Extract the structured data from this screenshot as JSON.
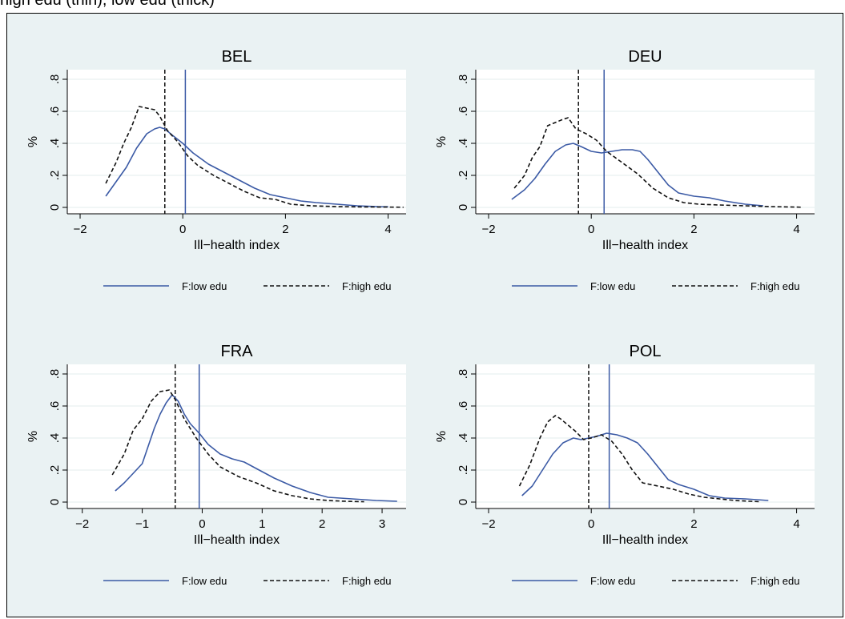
{
  "caption": "high edu (thin), low edu (thick)",
  "colors": {
    "low_edu": "#3b5aa5",
    "high_edu": "#111111",
    "panel_bg": "#eaf2f3",
    "plot_bg": "#ffffff",
    "grid": "#e3eced"
  },
  "chart_data": [
    {
      "type": "line",
      "title": "BEL",
      "xlabel": "Ill−health index",
      "ylabel": "%",
      "xlim": [
        -2.25,
        4.35
      ],
      "ylim": [
        -0.04,
        0.86
      ],
      "xticks": [
        -2,
        0,
        2,
        4
      ],
      "xtick_labels": [
        "−2",
        "0",
        "2",
        "4"
      ],
      "yticks": [
        0,
        0.2,
        0.4,
        0.6,
        0.8
      ],
      "ytick_labels": [
        "0",
        ".2",
        ".4",
        ".6",
        ".8"
      ],
      "grid": true,
      "legend_position": "bottom",
      "vlines": [
        {
          "series": "F:low edu",
          "x": 0.05
        },
        {
          "series": "F:high edu",
          "x": -0.35
        }
      ],
      "series": [
        {
          "name": "F:low edu",
          "style": "solid",
          "x": [
            -1.5,
            -1.3,
            -1.1,
            -0.9,
            -0.7,
            -0.55,
            -0.45,
            -0.35,
            -0.2,
            0,
            0.2,
            0.5,
            0.8,
            1.1,
            1.4,
            1.7,
            2.0,
            2.3,
            2.6,
            3.0,
            3.4,
            3.8,
            4.0
          ],
          "y": [
            0.07,
            0.16,
            0.25,
            0.37,
            0.46,
            0.49,
            0.5,
            0.49,
            0.45,
            0.4,
            0.34,
            0.27,
            0.22,
            0.17,
            0.12,
            0.08,
            0.06,
            0.04,
            0.03,
            0.02,
            0.01,
            0.005,
            0.004
          ]
        },
        {
          "name": "F:high edu",
          "style": "dashed",
          "x": [
            -1.5,
            -1.3,
            -1.15,
            -1.0,
            -0.85,
            -0.7,
            -0.55,
            -0.45,
            -0.3,
            -0.1,
            0.1,
            0.3,
            0.6,
            0.9,
            1.2,
            1.5,
            1.8,
            2.1,
            2.5,
            3.0,
            3.5,
            4.0,
            4.3
          ],
          "y": [
            0.15,
            0.28,
            0.4,
            0.5,
            0.63,
            0.62,
            0.61,
            0.57,
            0.48,
            0.41,
            0.32,
            0.26,
            0.2,
            0.15,
            0.1,
            0.06,
            0.05,
            0.02,
            0.01,
            0.005,
            0.003,
            0.002,
            0.001
          ]
        }
      ]
    },
    {
      "type": "line",
      "title": "DEU",
      "xlabel": "Ill−health index",
      "ylabel": "%",
      "xlim": [
        -2.25,
        4.35
      ],
      "ylim": [
        -0.04,
        0.86
      ],
      "xticks": [
        -2,
        0,
        2,
        4
      ],
      "xtick_labels": [
        "−2",
        "0",
        "2",
        "4"
      ],
      "yticks": [
        0,
        0.2,
        0.4,
        0.6,
        0.8
      ],
      "ytick_labels": [
        "0",
        ".2",
        ".4",
        ".6",
        ".8"
      ],
      "grid": true,
      "legend_position": "bottom",
      "vlines": [
        {
          "series": "F:low edu",
          "x": 0.25
        },
        {
          "series": "F:high edu",
          "x": -0.25
        }
      ],
      "series": [
        {
          "name": "F:low edu",
          "style": "solid",
          "x": [
            -1.55,
            -1.3,
            -1.1,
            -0.9,
            -0.7,
            -0.5,
            -0.35,
            -0.2,
            0,
            0.2,
            0.4,
            0.6,
            0.8,
            0.95,
            1.1,
            1.3,
            1.5,
            1.7,
            2.0,
            2.3,
            2.6,
            3.0,
            3.35
          ],
          "y": [
            0.05,
            0.11,
            0.18,
            0.27,
            0.35,
            0.39,
            0.4,
            0.38,
            0.35,
            0.34,
            0.35,
            0.36,
            0.36,
            0.35,
            0.3,
            0.22,
            0.14,
            0.09,
            0.07,
            0.06,
            0.04,
            0.02,
            0.01
          ]
        },
        {
          "name": "F:high edu",
          "style": "dashed",
          "x": [
            -1.5,
            -1.3,
            -1.15,
            -1.0,
            -0.85,
            -0.7,
            -0.55,
            -0.45,
            -0.3,
            -0.1,
            0.1,
            0.3,
            0.6,
            0.9,
            1.2,
            1.5,
            1.8,
            2.1,
            2.5,
            3.0,
            3.5,
            4.0,
            4.1
          ],
          "y": [
            0.12,
            0.2,
            0.31,
            0.38,
            0.51,
            0.53,
            0.55,
            0.56,
            0.49,
            0.46,
            0.42,
            0.35,
            0.28,
            0.21,
            0.12,
            0.06,
            0.03,
            0.02,
            0.015,
            0.01,
            0.005,
            0.002,
            0.001
          ]
        }
      ]
    },
    {
      "type": "line",
      "title": "FRA",
      "xlabel": "Ill−health index",
      "ylabel": "%",
      "xlim": [
        -2.25,
        3.4
      ],
      "ylim": [
        -0.04,
        0.86
      ],
      "xticks": [
        -2,
        -1,
        0,
        1,
        2,
        3
      ],
      "xtick_labels": [
        "−2",
        "−1",
        "0",
        "1",
        "2",
        "3"
      ],
      "yticks": [
        0,
        0.2,
        0.4,
        0.6,
        0.8
      ],
      "ytick_labels": [
        "0",
        ".2",
        ".4",
        ".6",
        ".8"
      ],
      "grid": true,
      "legend_position": "bottom",
      "vlines": [
        {
          "series": "F:low edu",
          "x": -0.05
        },
        {
          "series": "F:high edu",
          "x": -0.45
        }
      ],
      "series": [
        {
          "name": "F:low edu",
          "style": "solid",
          "x": [
            -1.45,
            -1.3,
            -1.15,
            -1.0,
            -0.9,
            -0.8,
            -0.7,
            -0.6,
            -0.5,
            -0.4,
            -0.3,
            -0.2,
            -0.05,
            0.1,
            0.3,
            0.5,
            0.7,
            0.9,
            1.2,
            1.5,
            1.8,
            2.1,
            2.5,
            2.9,
            3.25
          ],
          "y": [
            0.07,
            0.12,
            0.18,
            0.24,
            0.35,
            0.46,
            0.55,
            0.62,
            0.67,
            0.63,
            0.55,
            0.49,
            0.43,
            0.36,
            0.3,
            0.27,
            0.25,
            0.21,
            0.15,
            0.1,
            0.06,
            0.03,
            0.02,
            0.01,
            0.005
          ]
        },
        {
          "name": "F:high edu",
          "style": "dashed",
          "x": [
            -1.5,
            -1.3,
            -1.15,
            -1.0,
            -0.85,
            -0.7,
            -0.55,
            -0.45,
            -0.3,
            -0.1,
            0.1,
            0.3,
            0.6,
            0.9,
            1.2,
            1.5,
            1.8,
            2.1,
            2.4,
            2.7
          ],
          "y": [
            0.17,
            0.3,
            0.45,
            0.52,
            0.63,
            0.69,
            0.7,
            0.64,
            0.52,
            0.4,
            0.3,
            0.22,
            0.16,
            0.12,
            0.07,
            0.04,
            0.02,
            0.01,
            0.005,
            0.002
          ]
        }
      ]
    },
    {
      "type": "line",
      "title": "POL",
      "xlabel": "Ill−health index",
      "ylabel": "%",
      "xlim": [
        -2.25,
        4.35
      ],
      "ylim": [
        -0.04,
        0.86
      ],
      "xticks": [
        -2,
        0,
        2,
        4
      ],
      "xtick_labels": [
        "−2",
        "0",
        "2",
        "4"
      ],
      "yticks": [
        0,
        0.2,
        0.4,
        0.6,
        0.8
      ],
      "ytick_labels": [
        "0",
        ".2",
        ".4",
        ".6",
        ".8"
      ],
      "grid": true,
      "legend_position": "bottom",
      "vlines": [
        {
          "series": "F:low edu",
          "x": 0.35
        },
        {
          "series": "F:high edu",
          "x": -0.05
        }
      ],
      "series": [
        {
          "name": "F:low edu",
          "style": "solid",
          "x": [
            -1.35,
            -1.15,
            -0.95,
            -0.75,
            -0.55,
            -0.35,
            -0.2,
            -0.05,
            0.1,
            0.3,
            0.5,
            0.7,
            0.9,
            1.1,
            1.3,
            1.5,
            1.7,
            2.0,
            2.3,
            2.6,
            3.0,
            3.45
          ],
          "y": [
            0.04,
            0.1,
            0.2,
            0.3,
            0.37,
            0.4,
            0.39,
            0.4,
            0.41,
            0.43,
            0.42,
            0.4,
            0.37,
            0.3,
            0.22,
            0.14,
            0.11,
            0.08,
            0.04,
            0.025,
            0.02,
            0.01
          ]
        },
        {
          "name": "F:high edu",
          "style": "dashed",
          "x": [
            -1.4,
            -1.2,
            -1.0,
            -0.85,
            -0.7,
            -0.6,
            -0.45,
            -0.3,
            -0.15,
            0,
            0.2,
            0.4,
            0.6,
            0.8,
            1.0,
            1.3,
            1.6,
            1.9,
            2.2,
            2.5,
            2.8,
            3.1,
            3.3
          ],
          "y": [
            0.1,
            0.23,
            0.4,
            0.5,
            0.54,
            0.52,
            0.48,
            0.44,
            0.39,
            0.4,
            0.42,
            0.38,
            0.3,
            0.2,
            0.12,
            0.1,
            0.08,
            0.05,
            0.03,
            0.02,
            0.01,
            0.005,
            0.002
          ]
        }
      ]
    }
  ]
}
